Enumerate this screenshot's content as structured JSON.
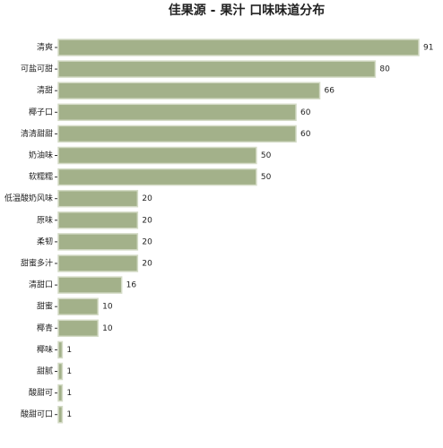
{
  "chart_data": {
    "type": "bar",
    "orientation": "horizontal",
    "title": "佳果源 - 果汁 口味味道分布",
    "categories": [
      "清爽",
      "可盐可甜",
      "清甜",
      "椰子口",
      "清清甜甜",
      "奶油味",
      "软糯糯",
      "低温酸奶风味",
      "原味",
      "柔韧",
      "甜蜜多汁",
      "清甜口",
      "甜蜜",
      "椰青",
      "椰味",
      "甜腻",
      "酸甜可",
      "酸甜可口"
    ],
    "values": [
      91,
      80,
      66,
      60,
      60,
      50,
      50,
      20,
      20,
      20,
      20,
      16,
      10,
      10,
      1,
      1,
      1,
      1
    ],
    "color": "#a3b18a",
    "xlim": [
      0,
      91
    ],
    "grid": false
  }
}
